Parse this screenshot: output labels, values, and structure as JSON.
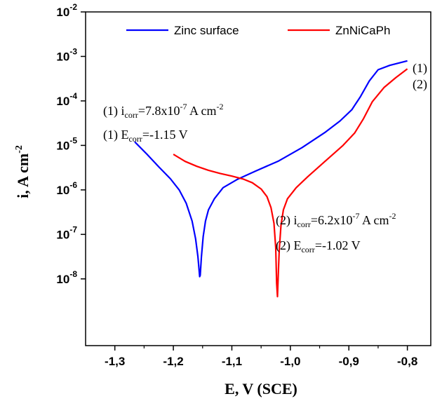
{
  "chart_data": {
    "type": "line",
    "xlabel": "E, V (SCE)",
    "ylabel": "i, A cm",
    "ylabel_sup": "-2",
    "xlim": [
      -1.35,
      -0.76
    ],
    "ylim_log10": [
      -9.5,
      -2
    ],
    "y_log_scale": true,
    "x_ticks": [
      -1.3,
      -1.2,
      -1.1,
      -1.0,
      -0.9,
      -0.8
    ],
    "x_tick_labels": [
      "-1,3",
      "-1,2",
      "-1,1",
      "-1,0",
      "-0,9",
      "-0,8"
    ],
    "y_tick_exponents": [
      -8,
      -7,
      -6,
      -5,
      -4,
      -3,
      -2
    ],
    "y_tick_base": "10",
    "legend": {
      "placement": "top"
    },
    "series": [
      {
        "name": "Zinc surface",
        "color": "#0000ff",
        "curve_label": "(1)",
        "points": [
          [
            -1.266,
            -4.92
          ],
          [
            -1.245,
            -5.2
          ],
          [
            -1.225,
            -5.48
          ],
          [
            -1.205,
            -5.75
          ],
          [
            -1.19,
            -6.0
          ],
          [
            -1.178,
            -6.3
          ],
          [
            -1.168,
            -6.7
          ],
          [
            -1.162,
            -7.1
          ],
          [
            -1.158,
            -7.5
          ],
          [
            -1.155,
            -7.95
          ],
          [
            -1.154,
            -7.92
          ],
          [
            -1.152,
            -7.5
          ],
          [
            -1.149,
            -7.05
          ],
          [
            -1.145,
            -6.7
          ],
          [
            -1.14,
            -6.45
          ],
          [
            -1.13,
            -6.2
          ],
          [
            -1.115,
            -5.95
          ],
          [
            -1.09,
            -5.76
          ],
          [
            -1.06,
            -5.58
          ],
          [
            -1.02,
            -5.35
          ],
          [
            -0.98,
            -5.05
          ],
          [
            -0.94,
            -4.7
          ],
          [
            -0.915,
            -4.45
          ],
          [
            -0.895,
            -4.2
          ],
          [
            -0.88,
            -3.9
          ],
          [
            -0.865,
            -3.55
          ],
          [
            -0.85,
            -3.3
          ],
          [
            -0.83,
            -3.2
          ],
          [
            -0.8,
            -3.1
          ]
        ]
      },
      {
        "name": "ZnNiCaPh",
        "color": "#ff0000",
        "curve_label": "(2)",
        "points": [
          [
            -1.2,
            -5.2
          ],
          [
            -1.18,
            -5.36
          ],
          [
            -1.16,
            -5.47
          ],
          [
            -1.14,
            -5.56
          ],
          [
            -1.12,
            -5.63
          ],
          [
            -1.1,
            -5.69
          ],
          [
            -1.08,
            -5.76
          ],
          [
            -1.065,
            -5.84
          ],
          [
            -1.05,
            -5.98
          ],
          [
            -1.04,
            -6.15
          ],
          [
            -1.033,
            -6.4
          ],
          [
            -1.028,
            -6.75
          ],
          [
            -1.025,
            -7.3
          ],
          [
            -1.0235,
            -8.1
          ],
          [
            -1.022,
            -8.4
          ],
          [
            -1.021,
            -8.0
          ],
          [
            -1.019,
            -7.35
          ],
          [
            -1.016,
            -6.8
          ],
          [
            -1.012,
            -6.45
          ],
          [
            -1.005,
            -6.2
          ],
          [
            -0.99,
            -5.95
          ],
          [
            -0.97,
            -5.7
          ],
          [
            -0.94,
            -5.35
          ],
          [
            -0.91,
            -5.0
          ],
          [
            -0.89,
            -4.72
          ],
          [
            -0.875,
            -4.4
          ],
          [
            -0.86,
            -4.02
          ],
          [
            -0.84,
            -3.7
          ],
          [
            -0.82,
            -3.48
          ],
          [
            -0.8,
            -3.28
          ]
        ]
      }
    ],
    "annotations": {
      "a1": {
        "prefix": "(1) i",
        "sub": "corr",
        "mid": "=7.8x10",
        "sup": "-7",
        "tail": " A cm",
        "sup2": "-2"
      },
      "a2": {
        "prefix": "(1) E",
        "sub": "corr",
        "mid": "=-1.15 V"
      },
      "a3": {
        "prefix": "(2) i",
        "sub": "corr",
        "mid": "=6.2x10",
        "sup": "-7",
        "tail": " A cm",
        "sup2": "-2"
      },
      "a4": {
        "prefix": "(2) E",
        "sub": "corr",
        "mid": "=-1.02 V"
      }
    }
  }
}
